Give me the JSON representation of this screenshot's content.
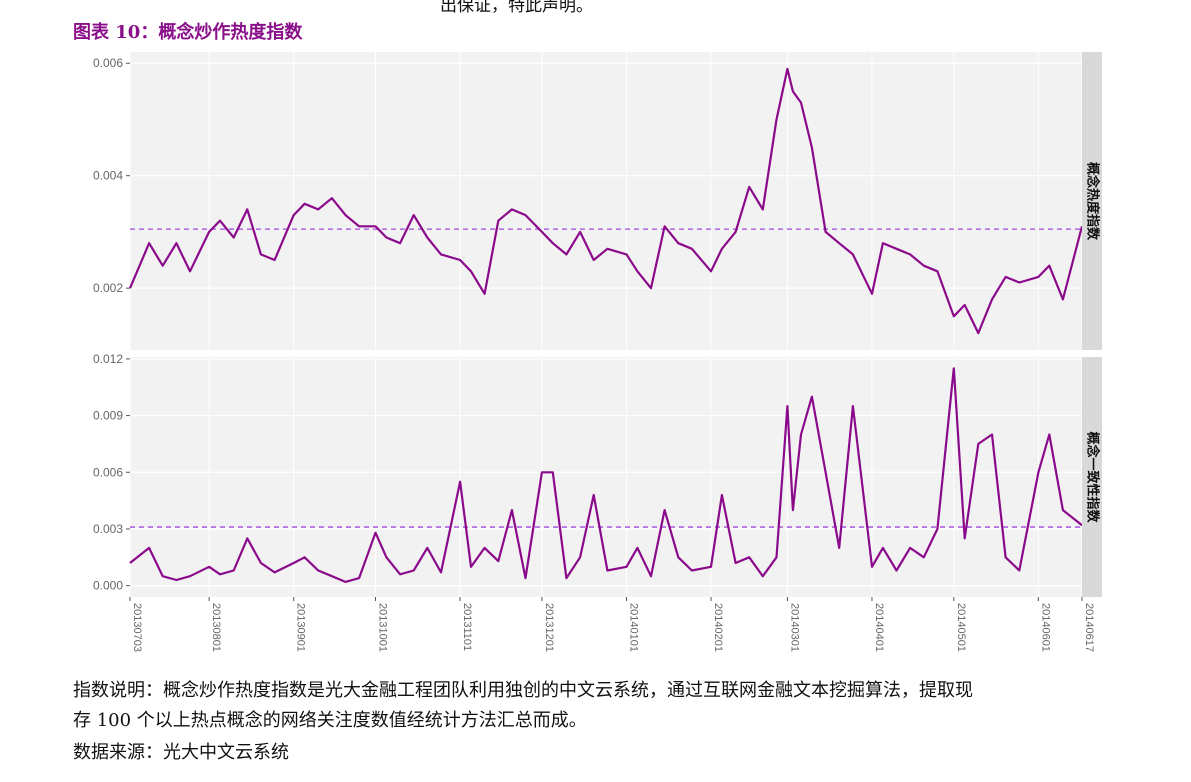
{
  "header_fragment": "出保证，特此声明。",
  "figure_title": "图表 10：概念炒作热度指数",
  "notes": {
    "line1": "指数说明：概念炒作热度指数是光大金融工程团队利用独创的中文云系统，通过互联网金融文本挖掘算法，提取现",
    "line2": "存 100 个以上热点概念的网络关注度数值经统计方法汇总而成。",
    "source": "数据来源：光大中文云系统"
  },
  "colors": {
    "line": "#8b0a8b",
    "mean_line": "#a04be0",
    "panel_bg": "#f2f2f2",
    "strip_bg": "#d9d9d9",
    "grid": "#ffffff"
  },
  "chart_data": [
    {
      "type": "line",
      "facet_label": "概念热度指数",
      "x_ticks": [
        "20130703",
        "20130801",
        "20130901",
        "20131001",
        "20131101",
        "20131201",
        "20140101",
        "20140201",
        "20140301",
        "20140401",
        "20140501",
        "20140601",
        "20140617"
      ],
      "y_ticks": [
        "0.002",
        "0.004",
        "0.006"
      ],
      "ylim": [
        0.0009,
        0.0062
      ],
      "mean": 0.00305,
      "x": [
        "20130703",
        "20130710",
        "20130715",
        "20130720",
        "20130725",
        "20130801",
        "20130805",
        "20130810",
        "20130815",
        "20130820",
        "20130825",
        "20130901",
        "20130905",
        "20130910",
        "20130915",
        "20130920",
        "20130925",
        "20131001",
        "20131005",
        "20131010",
        "20131015",
        "20131020",
        "20131025",
        "20131101",
        "20131105",
        "20131110",
        "20131115",
        "20131120",
        "20131125",
        "20131201",
        "20131205",
        "20131210",
        "20131215",
        "20131220",
        "20131225",
        "20140101",
        "20140105",
        "20140110",
        "20140115",
        "20140120",
        "20140125",
        "20140201",
        "20140205",
        "20140210",
        "20140215",
        "20140220",
        "20140225",
        "20140301",
        "20140303",
        "20140306",
        "20140310",
        "20140315",
        "20140320",
        "20140325",
        "20140401",
        "20140405",
        "20140410",
        "20140415",
        "20140420",
        "20140425",
        "20140501",
        "20140505",
        "20140510",
        "20140515",
        "20140520",
        "20140525",
        "20140601",
        "20140605",
        "20140610",
        "20140617"
      ],
      "values": [
        0.002,
        0.0028,
        0.0024,
        0.0028,
        0.0023,
        0.003,
        0.0032,
        0.0029,
        0.0034,
        0.0026,
        0.0025,
        0.0033,
        0.0035,
        0.0034,
        0.0036,
        0.0033,
        0.0031,
        0.0031,
        0.0029,
        0.0028,
        0.0033,
        0.0029,
        0.0026,
        0.0025,
        0.0023,
        0.0019,
        0.0032,
        0.0034,
        0.0033,
        0.003,
        0.0028,
        0.0026,
        0.003,
        0.0025,
        0.0027,
        0.0026,
        0.0023,
        0.002,
        0.0031,
        0.0028,
        0.0027,
        0.0023,
        0.0027,
        0.003,
        0.0038,
        0.0034,
        0.005,
        0.0059,
        0.0055,
        0.0053,
        0.0045,
        0.003,
        0.0028,
        0.0026,
        0.0019,
        0.0028,
        0.0027,
        0.0026,
        0.0024,
        0.0023,
        0.0015,
        0.0017,
        0.0012,
        0.0018,
        0.0022,
        0.0021,
        0.0022,
        0.0024,
        0.0018,
        0.0031
      ]
    },
    {
      "type": "line",
      "facet_label": "概念一致性指数",
      "x_ticks": [
        "20130703",
        "20130801",
        "20130901",
        "20131001",
        "20131101",
        "20131201",
        "20140101",
        "20140201",
        "20140301",
        "20140401",
        "20140501",
        "20140601",
        "20140617"
      ],
      "y_ticks": [
        "0.000",
        "0.003",
        "0.006",
        "0.009",
        "0.012"
      ],
      "ylim": [
        -0.0006,
        0.0121
      ],
      "mean": 0.0031,
      "x": [
        "20130703",
        "20130710",
        "20130715",
        "20130720",
        "20130725",
        "20130801",
        "20130805",
        "20130810",
        "20130815",
        "20130820",
        "20130825",
        "20130901",
        "20130905",
        "20130910",
        "20130915",
        "20130920",
        "20130925",
        "20131001",
        "20131005",
        "20131010",
        "20131015",
        "20131020",
        "20131025",
        "20131101",
        "20131105",
        "20131110",
        "20131115",
        "20131120",
        "20131125",
        "20131201",
        "20131205",
        "20131210",
        "20131215",
        "20131220",
        "20131225",
        "20140101",
        "20140105",
        "20140110",
        "20140115",
        "20140120",
        "20140125",
        "20140201",
        "20140205",
        "20140210",
        "20140215",
        "20140220",
        "20140225",
        "20140301",
        "20140303",
        "20140306",
        "20140310",
        "20140315",
        "20140320",
        "20140325",
        "20140401",
        "20140405",
        "20140410",
        "20140415",
        "20140420",
        "20140425",
        "20140501",
        "20140505",
        "20140510",
        "20140515",
        "20140520",
        "20140525",
        "20140601",
        "20140605",
        "20140610",
        "20140617"
      ],
      "values": [
        0.0012,
        0.002,
        0.0005,
        0.0003,
        0.0005,
        0.001,
        0.0006,
        0.0008,
        0.0025,
        0.0012,
        0.0007,
        0.0012,
        0.0015,
        0.0008,
        0.0005,
        0.0002,
        0.0004,
        0.0028,
        0.0015,
        0.0006,
        0.0008,
        0.002,
        0.0007,
        0.0055,
        0.001,
        0.002,
        0.0013,
        0.004,
        0.0004,
        0.006,
        0.006,
        0.0004,
        0.0015,
        0.0048,
        0.0008,
        0.001,
        0.002,
        0.0005,
        0.004,
        0.0015,
        0.0008,
        0.001,
        0.0048,
        0.0012,
        0.0015,
        0.0005,
        0.0015,
        0.0095,
        0.004,
        0.008,
        0.01,
        0.006,
        0.002,
        0.0095,
        0.001,
        0.002,
        0.0008,
        0.002,
        0.0015,
        0.003,
        0.0115,
        0.0025,
        0.0075,
        0.008,
        0.0015,
        0.0008,
        0.006,
        0.008,
        0.004,
        0.0032
      ]
    }
  ]
}
